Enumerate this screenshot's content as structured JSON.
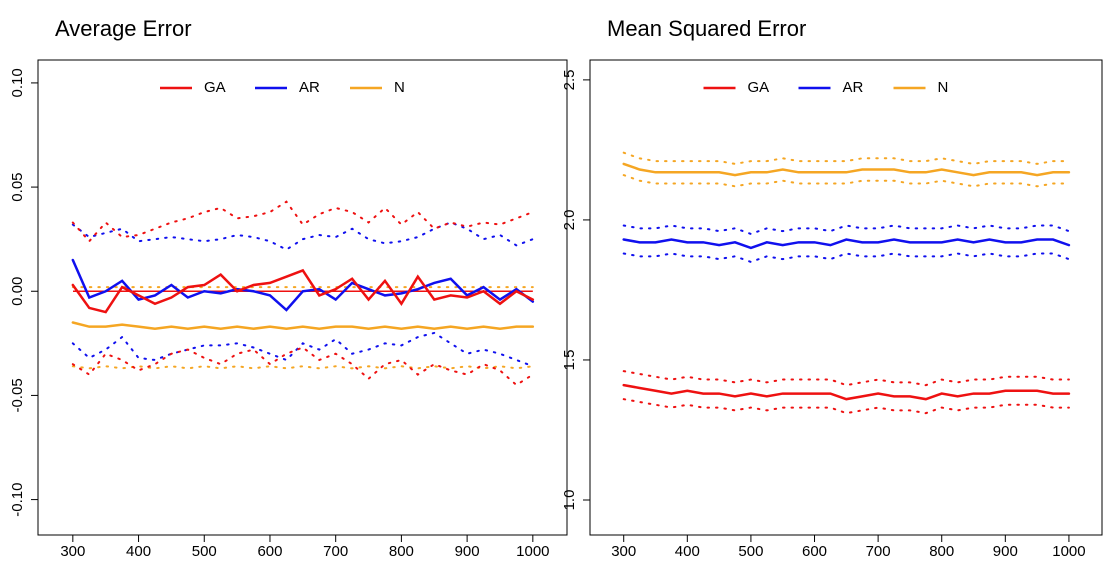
{
  "chart_data": [
    {
      "type": "line",
      "title": "Average Error",
      "x": [
        300,
        325,
        350,
        375,
        400,
        425,
        450,
        475,
        500,
        525,
        550,
        575,
        600,
        625,
        650,
        675,
        700,
        725,
        750,
        775,
        800,
        825,
        850,
        875,
        900,
        925,
        950,
        975,
        1000
      ],
      "xlim": [
        247,
        1052
      ],
      "xticks": [
        300,
        400,
        500,
        600,
        700,
        800,
        900,
        1000
      ],
      "ylim": [
        -0.117,
        0.111
      ],
      "yticks": [
        {
          "value": -0.1,
          "label": "-0.10"
        },
        -0.05,
        {
          "value": 0,
          "label": "0.00"
        },
        0.05,
        {
          "value": 0.1,
          "label": "0.10"
        }
      ],
      "reference_line": {
        "value": 0,
        "color": "#ee1111"
      },
      "legend": "top",
      "series": [
        {
          "name": "GA",
          "color": "#ee1111",
          "values": [
            0.003,
            -0.008,
            -0.01,
            0.002,
            -0.002,
            -0.006,
            -0.003,
            0.002,
            0.003,
            0.008,
            0.0,
            0.003,
            0.004,
            0.007,
            0.01,
            -0.002,
            0.001,
            0.006,
            -0.004,
            0.005,
            -0.006,
            0.007,
            -0.004,
            -0.002,
            -0.003,
            0.0,
            -0.006,
            0.0,
            -0.004
          ],
          "upper": [
            0.033,
            0.024,
            0.033,
            0.026,
            0.027,
            0.03,
            0.033,
            0.035,
            0.038,
            0.04,
            0.035,
            0.036,
            0.038,
            0.043,
            0.032,
            0.037,
            0.04,
            0.038,
            0.033,
            0.04,
            0.032,
            0.038,
            0.03,
            0.033,
            0.031,
            0.033,
            0.032,
            0.035,
            0.038
          ],
          "lower": [
            -0.035,
            -0.04,
            -0.03,
            -0.033,
            -0.038,
            -0.035,
            -0.03,
            -0.028,
            -0.032,
            -0.035,
            -0.03,
            -0.028,
            -0.035,
            -0.03,
            -0.027,
            -0.033,
            -0.03,
            -0.035,
            -0.042,
            -0.035,
            -0.033,
            -0.04,
            -0.035,
            -0.038,
            -0.04,
            -0.035,
            -0.038,
            -0.045,
            -0.04
          ]
        },
        {
          "name": "AR",
          "color": "#1010ee",
          "values": [
            0.015,
            -0.003,
            0.0,
            0.005,
            -0.004,
            -0.002,
            0.003,
            -0.003,
            0.0,
            -0.001,
            0.001,
            0.0,
            -0.002,
            -0.009,
            0.0,
            0.001,
            -0.004,
            0.004,
            0.001,
            -0.002,
            -0.001,
            0.001,
            0.004,
            0.006,
            -0.002,
            0.002,
            -0.004,
            0.001,
            -0.005
          ],
          "upper": [
            0.032,
            0.026,
            0.028,
            0.03,
            0.024,
            0.025,
            0.026,
            0.025,
            0.024,
            0.025,
            0.027,
            0.026,
            0.024,
            0.02,
            0.025,
            0.027,
            0.026,
            0.03,
            0.025,
            0.023,
            0.024,
            0.026,
            0.03,
            0.033,
            0.03,
            0.025,
            0.027,
            0.022,
            0.025
          ],
          "lower": [
            -0.025,
            -0.032,
            -0.028,
            -0.022,
            -0.032,
            -0.033,
            -0.03,
            -0.028,
            -0.026,
            -0.026,
            -0.025,
            -0.027,
            -0.03,
            -0.033,
            -0.025,
            -0.028,
            -0.023,
            -0.03,
            -0.028,
            -0.025,
            -0.026,
            -0.022,
            -0.02,
            -0.025,
            -0.03,
            -0.028,
            -0.03,
            -0.033,
            -0.036
          ]
        },
        {
          "name": "N",
          "color": "#f5a623",
          "values": [
            -0.015,
            -0.017,
            -0.017,
            -0.016,
            -0.017,
            -0.018,
            -0.017,
            -0.018,
            -0.017,
            -0.018,
            -0.017,
            -0.018,
            -0.017,
            -0.018,
            -0.017,
            -0.018,
            -0.017,
            -0.017,
            -0.018,
            -0.017,
            -0.018,
            -0.017,
            -0.018,
            -0.017,
            -0.018,
            -0.017,
            -0.018,
            -0.017,
            -0.017
          ],
          "upper": [
            0.002,
            0.002,
            0.002,
            0.002,
            0.002,
            0.002,
            0.002,
            0.002,
            0.002,
            0.002,
            0.002,
            0.002,
            0.002,
            0.002,
            0.002,
            0.002,
            0.002,
            0.002,
            0.002,
            0.002,
            0.002,
            0.002,
            0.002,
            0.002,
            0.002,
            0.002,
            0.002,
            0.002,
            0.002
          ],
          "lower": [
            -0.036,
            -0.037,
            -0.036,
            -0.037,
            -0.036,
            -0.037,
            -0.036,
            -0.037,
            -0.036,
            -0.037,
            -0.036,
            -0.037,
            -0.036,
            -0.037,
            -0.036,
            -0.037,
            -0.036,
            -0.037,
            -0.036,
            -0.037,
            -0.036,
            -0.037,
            -0.036,
            -0.037,
            -0.036,
            -0.037,
            -0.036,
            -0.037,
            -0.036
          ]
        }
      ]
    },
    {
      "type": "line",
      "title": "Mean Squared Error",
      "x": [
        300,
        325,
        350,
        375,
        400,
        425,
        450,
        475,
        500,
        525,
        550,
        575,
        600,
        625,
        650,
        675,
        700,
        725,
        750,
        775,
        800,
        825,
        850,
        875,
        900,
        925,
        950,
        975,
        1000
      ],
      "xlim": [
        247,
        1052
      ],
      "xticks": [
        300,
        400,
        500,
        600,
        700,
        800,
        900,
        1000
      ],
      "ylim": [
        0.875,
        2.571
      ],
      "yticks": [
        {
          "value": 1,
          "label": "1.0"
        },
        1.5,
        {
          "value": 2,
          "label": "2.0"
        },
        2.5
      ],
      "legend": "top",
      "series": [
        {
          "name": "GA",
          "color": "#ee1111",
          "values": [
            1.41,
            1.4,
            1.39,
            1.38,
            1.39,
            1.38,
            1.38,
            1.37,
            1.38,
            1.37,
            1.38,
            1.38,
            1.38,
            1.38,
            1.36,
            1.37,
            1.38,
            1.37,
            1.37,
            1.36,
            1.38,
            1.37,
            1.38,
            1.38,
            1.39,
            1.39,
            1.39,
            1.38,
            1.38
          ],
          "upper": [
            1.46,
            1.45,
            1.44,
            1.43,
            1.44,
            1.43,
            1.43,
            1.42,
            1.43,
            1.42,
            1.43,
            1.43,
            1.43,
            1.43,
            1.41,
            1.42,
            1.43,
            1.42,
            1.42,
            1.41,
            1.43,
            1.42,
            1.43,
            1.43,
            1.44,
            1.44,
            1.44,
            1.43,
            1.43
          ],
          "lower": [
            1.36,
            1.35,
            1.34,
            1.33,
            1.34,
            1.33,
            1.33,
            1.32,
            1.33,
            1.32,
            1.33,
            1.33,
            1.33,
            1.33,
            1.31,
            1.32,
            1.33,
            1.32,
            1.32,
            1.31,
            1.33,
            1.32,
            1.33,
            1.33,
            1.34,
            1.34,
            1.34,
            1.33,
            1.33
          ]
        },
        {
          "name": "AR",
          "color": "#1010ee",
          "values": [
            1.93,
            1.92,
            1.92,
            1.93,
            1.92,
            1.92,
            1.91,
            1.92,
            1.9,
            1.92,
            1.91,
            1.92,
            1.92,
            1.91,
            1.93,
            1.92,
            1.92,
            1.93,
            1.92,
            1.92,
            1.92,
            1.93,
            1.92,
            1.93,
            1.92,
            1.92,
            1.93,
            1.93,
            1.91
          ],
          "upper": [
            1.98,
            1.97,
            1.97,
            1.98,
            1.97,
            1.97,
            1.96,
            1.97,
            1.95,
            1.97,
            1.96,
            1.97,
            1.97,
            1.96,
            1.98,
            1.97,
            1.97,
            1.98,
            1.97,
            1.97,
            1.97,
            1.98,
            1.97,
            1.98,
            1.97,
            1.97,
            1.98,
            1.98,
            1.96
          ],
          "lower": [
            1.88,
            1.87,
            1.87,
            1.88,
            1.87,
            1.87,
            1.86,
            1.87,
            1.85,
            1.87,
            1.86,
            1.87,
            1.87,
            1.86,
            1.88,
            1.87,
            1.87,
            1.88,
            1.87,
            1.87,
            1.87,
            1.88,
            1.87,
            1.88,
            1.87,
            1.87,
            1.88,
            1.88,
            1.86
          ]
        },
        {
          "name": "N",
          "color": "#f5a623",
          "values": [
            2.2,
            2.18,
            2.17,
            2.17,
            2.17,
            2.17,
            2.17,
            2.16,
            2.17,
            2.17,
            2.18,
            2.17,
            2.17,
            2.17,
            2.17,
            2.18,
            2.18,
            2.18,
            2.17,
            2.17,
            2.18,
            2.17,
            2.16,
            2.17,
            2.17,
            2.17,
            2.16,
            2.17,
            2.17
          ],
          "upper": [
            2.24,
            2.22,
            2.21,
            2.21,
            2.21,
            2.21,
            2.21,
            2.2,
            2.21,
            2.21,
            2.22,
            2.21,
            2.21,
            2.21,
            2.21,
            2.22,
            2.22,
            2.22,
            2.21,
            2.21,
            2.22,
            2.21,
            2.2,
            2.21,
            2.21,
            2.21,
            2.2,
            2.21,
            2.21
          ],
          "lower": [
            2.16,
            2.14,
            2.13,
            2.13,
            2.13,
            2.13,
            2.13,
            2.12,
            2.13,
            2.13,
            2.14,
            2.13,
            2.13,
            2.13,
            2.13,
            2.14,
            2.14,
            2.14,
            2.13,
            2.13,
            2.14,
            2.13,
            2.12,
            2.13,
            2.13,
            2.13,
            2.12,
            2.13,
            2.13
          ]
        }
      ]
    }
  ]
}
